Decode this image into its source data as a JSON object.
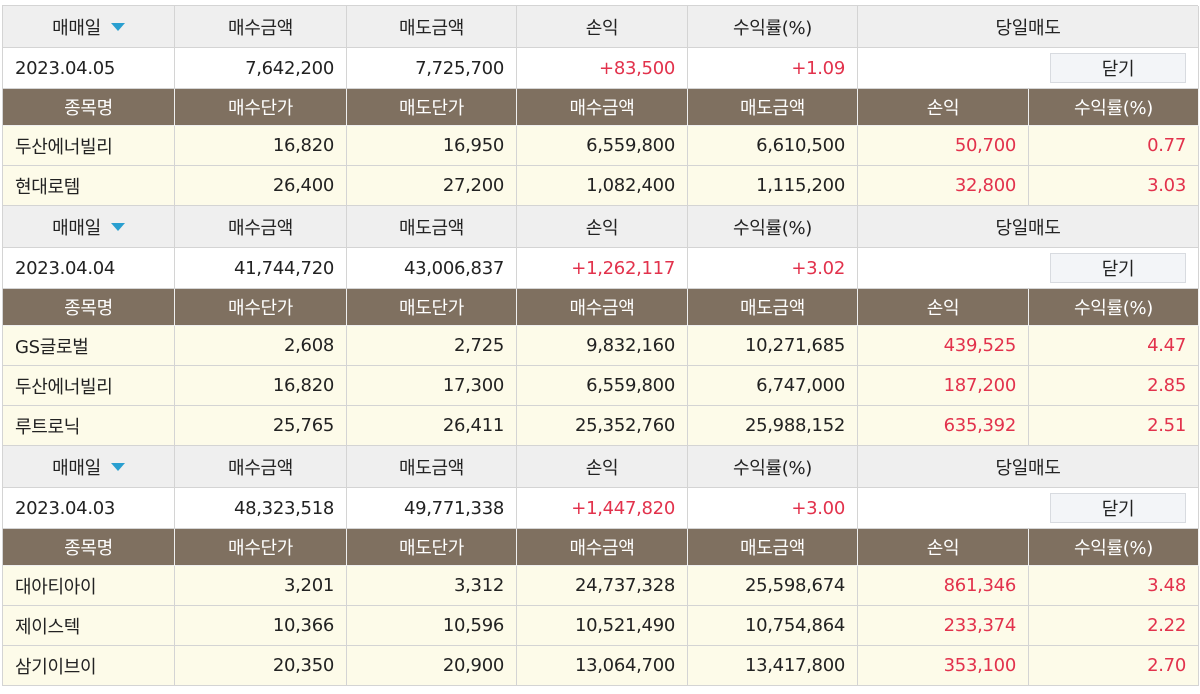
{
  "summary_headers": [
    "매매일",
    "매수금액",
    "매도금액",
    "손익",
    "수익률(%)",
    "당일매도"
  ],
  "detail_headers": [
    "종목명",
    "매수단가",
    "매도단가",
    "매수금액",
    "매도금액",
    "손익",
    "수익률(%)"
  ],
  "close_label": "닫기",
  "colors": {
    "profit": "#e2324c",
    "detail_header_bg": "#7f7060",
    "row_bg": "#fdfbe9",
    "sort_icon": "#2a9fd0"
  },
  "days": [
    {
      "date": "2023.04.05",
      "buy_amount": "7,642,200",
      "sell_amount": "7,725,700",
      "profit": "+83,500",
      "rate": "+1.09",
      "items": [
        {
          "name": "두산에너빌리",
          "buy_price": "16,820",
          "sell_price": "16,950",
          "buy_amount": "6,559,800",
          "sell_amount": "6,610,500",
          "profit": "50,700",
          "rate": "0.77"
        },
        {
          "name": "현대로템",
          "buy_price": "26,400",
          "sell_price": "27,200",
          "buy_amount": "1,082,400",
          "sell_amount": "1,115,200",
          "profit": "32,800",
          "rate": "3.03"
        }
      ]
    },
    {
      "date": "2023.04.04",
      "buy_amount": "41,744,720",
      "sell_amount": "43,006,837",
      "profit": "+1,262,117",
      "rate": "+3.02",
      "items": [
        {
          "name": "GS글로벌",
          "buy_price": "2,608",
          "sell_price": "2,725",
          "buy_amount": "9,832,160",
          "sell_amount": "10,271,685",
          "profit": "439,525",
          "rate": "4.47"
        },
        {
          "name": "두산에너빌리",
          "buy_price": "16,820",
          "sell_price": "17,300",
          "buy_amount": "6,559,800",
          "sell_amount": "6,747,000",
          "profit": "187,200",
          "rate": "2.85"
        },
        {
          "name": "루트로닉",
          "buy_price": "25,765",
          "sell_price": "26,411",
          "buy_amount": "25,352,760",
          "sell_amount": "25,988,152",
          "profit": "635,392",
          "rate": "2.51"
        }
      ]
    },
    {
      "date": "2023.04.03",
      "buy_amount": "48,323,518",
      "sell_amount": "49,771,338",
      "profit": "+1,447,820",
      "rate": "+3.00",
      "items": [
        {
          "name": "대아티아이",
          "buy_price": "3,201",
          "sell_price": "3,312",
          "buy_amount": "24,737,328",
          "sell_amount": "25,598,674",
          "profit": "861,346",
          "rate": "3.48"
        },
        {
          "name": "제이스텍",
          "buy_price": "10,366",
          "sell_price": "10,596",
          "buy_amount": "10,521,490",
          "sell_amount": "10,754,864",
          "profit": "233,374",
          "rate": "2.22"
        },
        {
          "name": "삼기이브이",
          "buy_price": "20,350",
          "sell_price": "20,900",
          "buy_amount": "13,064,700",
          "sell_amount": "13,417,800",
          "profit": "353,100",
          "rate": "2.70"
        }
      ]
    }
  ]
}
